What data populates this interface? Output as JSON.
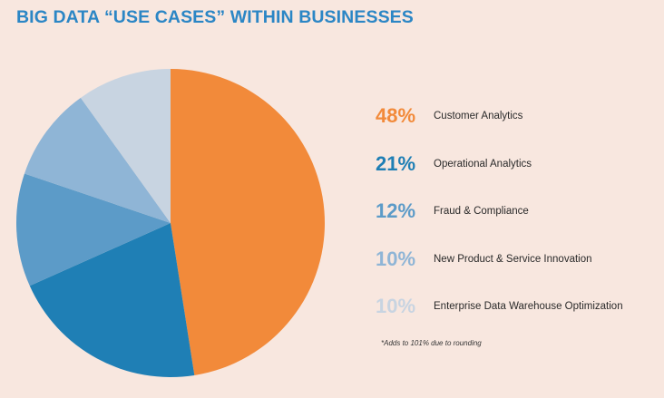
{
  "chart_data": {
    "type": "pie",
    "title": "BIG DATA “USE CASES” WITHIN BUSINESSES",
    "slices": [
      {
        "label": "Customer Analytics",
        "value": 48,
        "display": "48%",
        "color": "#f28a3a"
      },
      {
        "label": "Operational Analytics",
        "value": 21,
        "display": "21%",
        "color": "#1f7fb5"
      },
      {
        "label": "Fraud & Compliance",
        "value": 12,
        "display": "12%",
        "color": "#5c9bc8"
      },
      {
        "label": "New Product & Service Innovation",
        "value": 10,
        "display": "10%",
        "color": "#8fb5d6"
      },
      {
        "label": "Enterprise Data Warehouse Optimization",
        "value": 10,
        "display": "10%",
        "color": "#c8d4e1"
      }
    ],
    "footnote": "*Adds to 101% due to rounding",
    "legend_placement": "right"
  },
  "colors": {
    "background": "#f8e7df",
    "title": "#2b86c5"
  }
}
